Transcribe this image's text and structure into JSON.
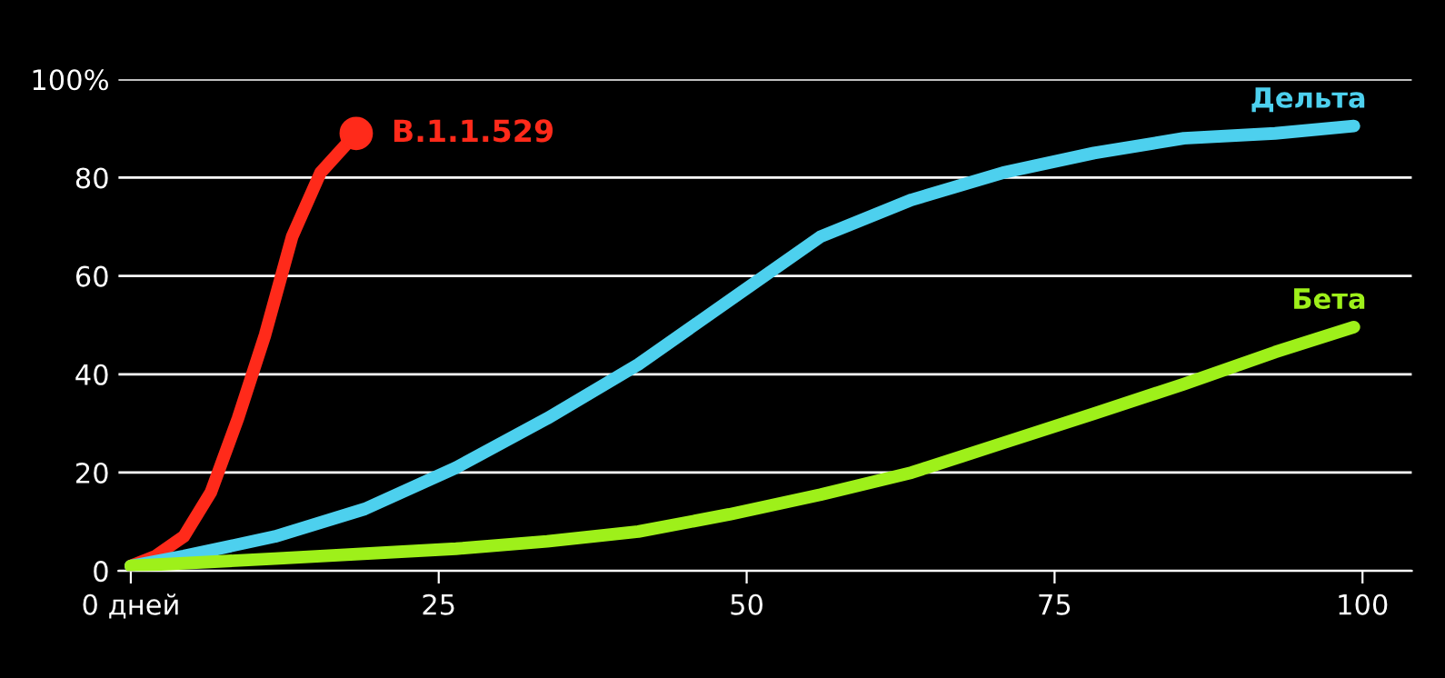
{
  "chart_data": {
    "type": "line",
    "xlim": [
      -1,
      104
    ],
    "ylim": [
      0,
      100
    ],
    "xticks": [
      {
        "value": 0,
        "label": "0 дней"
      },
      25,
      50,
      75,
      100
    ],
    "yticks": [
      0,
      20,
      40,
      60,
      80,
      {
        "value": 100,
        "label": "100%"
      }
    ],
    "grid": "y",
    "legend": false,
    "line_style": "solid",
    "series": [
      {
        "type": "scatter",
        "color": "#ff2a1a",
        "marker": "circle",
        "x": [
          18.3
        ],
        "values": [
          89
        ]
      },
      {
        "name": "B.1.1.529",
        "color": "#ff2a1a",
        "x": [
          0,
          2,
          4.3,
          6.5,
          8.7,
          10.9,
          13.1,
          15.4,
          18.3
        ],
        "values": [
          1,
          3,
          7,
          16,
          31,
          48,
          68,
          81,
          89
        ]
      },
      {
        "name": "Дельта",
        "color": "#4dd0ee",
        "x": [
          0,
          4.3,
          11.7,
          19,
          26.4,
          33.8,
          41.2,
          48.6,
          56,
          63.4,
          70.8,
          78.2,
          85.5,
          92.9,
          99.3
        ],
        "values": [
          1,
          3,
          7,
          12.6,
          21,
          31,
          42,
          55,
          68,
          75.5,
          81,
          85,
          88,
          89,
          90.5
        ]
      },
      {
        "name": "Бета",
        "color": "#9ef01a",
        "x": [
          0,
          11.7,
          26.4,
          33.8,
          41.2,
          48.6,
          56,
          63.4,
          70.8,
          78.2,
          85.5,
          92.9,
          99.3
        ],
        "values": [
          1,
          2.5,
          4.5,
          6,
          8,
          11.5,
          15.5,
          20,
          26,
          32,
          38,
          44.5,
          49.6
        ]
      }
    ]
  }
}
